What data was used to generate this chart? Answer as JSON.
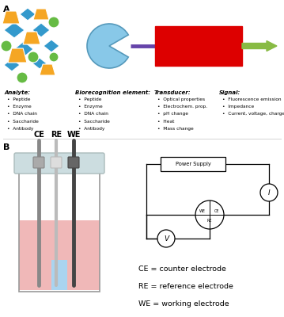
{
  "bg_color": "#ffffff",
  "panel_a_label": "A",
  "panel_b_label": "B",
  "analyte_header": "Analyte:",
  "analyte_items": [
    "Peptide",
    "Enzyme",
    "DNA chain",
    "Saccharide",
    "Antibody"
  ],
  "biorecog_header": "Biorecognition element:",
  "biorecog_items": [
    "Peptide",
    "Enzyme",
    "DNA chain",
    "Saccharide",
    "Antibody"
  ],
  "transducer_header": "Transducer:",
  "transducer_items": [
    "Optical properties",
    "Electrochem. prop.",
    "pH change",
    "Heat",
    "Mass change"
  ],
  "signal_header": "Signal:",
  "signal_items": [
    "Fluorescence emission",
    "Impedance",
    "Current, voltage, charge, ..."
  ],
  "ce_label": "CE",
  "re_label": "RE",
  "we_label": "WE",
  "ce_desc": "CE = counter electrode",
  "re_desc": "RE = reference electrode",
  "we_desc": "WE = working electrode",
  "power_supply": "Power Supply",
  "diamond_color": "#3399cc",
  "trapezoid_color": "#f5a623",
  "circle_color": "#66bb44",
  "transducer_color": "#dd0000",
  "connector_color": "#6644aa",
  "arrow_color": "#88bb44",
  "pac_color": "#88c8e8",
  "pac_edge": "#5599bb"
}
